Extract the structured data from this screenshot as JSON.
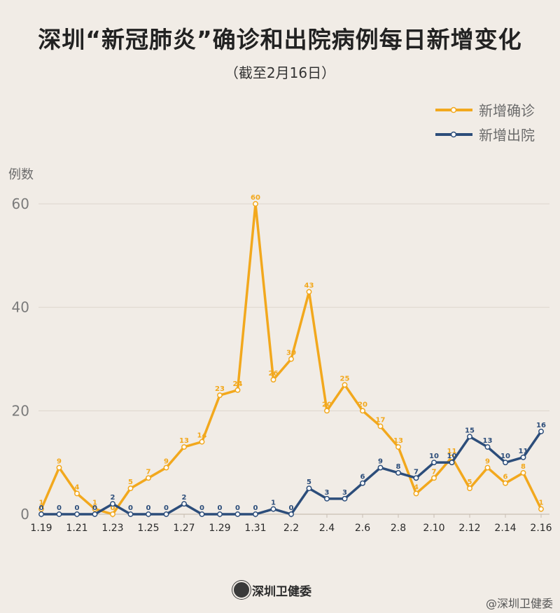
{
  "title": "深圳“新冠肺炎”确诊和出院病例每日新增变化",
  "subtitle": "（截至2月16日）",
  "footer": {
    "logo_text": "深圳卫健委"
  },
  "watermark": "@深圳卫健委",
  "colors": {
    "confirmed": "#f2a81d",
    "discharged": "#2c4d7a",
    "background": "#f1ece6"
  },
  "chart_data": {
    "type": "line",
    "ylabel": "例数",
    "ylim": [
      0,
      60
    ],
    "yticks": [
      0,
      20,
      40,
      60
    ],
    "legend_position": "top-right",
    "grid": true,
    "x": [
      "1.19",
      "1.20",
      "1.21",
      "1.22",
      "1.23",
      "1.24",
      "1.25",
      "1.26",
      "1.27",
      "1.28",
      "1.29",
      "1.30",
      "1.31",
      "2.1",
      "2.2",
      "2.3",
      "2.4",
      "2.5",
      "2.6",
      "2.7",
      "2.8",
      "2.9",
      "2.10",
      "2.11",
      "2.12",
      "2.13",
      "2.14",
      "2.15",
      "2.16"
    ],
    "xtick_labels": [
      "1.19",
      "1.21",
      "1.23",
      "1.25",
      "1.27",
      "1.29",
      "1.31",
      "2.2",
      "2.4",
      "2.6",
      "2.8",
      "2.10",
      "2.12",
      "2.14",
      "2.16"
    ],
    "series": [
      {
        "name": "新增确诊",
        "color": "#f2a81d",
        "values": [
          1,
          9,
          4,
          1,
          0,
          5,
          7,
          9,
          13,
          14,
          23,
          24,
          60,
          26,
          30,
          43,
          20,
          25,
          20,
          17,
          13,
          4,
          7,
          11,
          5,
          9,
          6,
          8,
          1
        ]
      },
      {
        "name": "新增出院",
        "color": "#2c4d7a",
        "values": [
          0,
          0,
          0,
          0,
          2,
          0,
          0,
          0,
          2,
          0,
          0,
          0,
          0,
          1,
          0,
          5,
          3,
          3,
          6,
          9,
          8,
          7,
          10,
          10,
          15,
          13,
          10,
          11,
          16
        ]
      }
    ]
  }
}
